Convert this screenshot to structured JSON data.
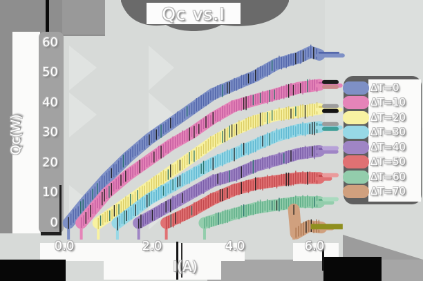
{
  "title": "Qc vs.I",
  "axes": {
    "xlabel": "I(A)",
    "ylabel": "Qc(W)",
    "xticks": [
      "0.0",
      "2.0",
      "4.0",
      "6.0"
    ],
    "yticks": [
      "0",
      "10",
      "20",
      "30",
      "40",
      "50",
      "60"
    ]
  },
  "legend": {
    "position": "right",
    "entries": [
      "ΔT=0",
      "ΔT=10",
      "ΔT=20",
      "ΔT=30",
      "ΔT=40",
      "ΔT=50",
      "ΔT=60",
      "ΔT=70"
    ]
  },
  "chart_data": {
    "type": "line",
    "title": "Qc vs.I",
    "xlabel": "I(A)",
    "ylabel": "Qc(W)",
    "xlim": [
      -0.55,
      6.55
    ],
    "ylim": [
      -6.5,
      61.5
    ],
    "xtick_values": [
      0,
      2,
      4,
      6
    ],
    "ytick_values": [
      0,
      10,
      20,
      30,
      40,
      50,
      60
    ],
    "grid": false,
    "legend_position": "right",
    "style": "thick hand-drawn bands with hatch ticks, white outlined labels on gray grunge",
    "series": [
      {
        "label": "ΔT=0",
        "color": "#7e90c6",
        "dark": "#4d61a8",
        "x": [
          0.1,
          0.5,
          1.0,
          1.5,
          2.0,
          2.5,
          3.0,
          3.5,
          4.0,
          4.5,
          5.0,
          5.5,
          5.8,
          6.0
        ],
        "y": [
          0,
          7,
          15,
          22,
          28,
          33,
          38,
          43,
          46,
          49,
          53,
          55,
          57,
          56
        ],
        "tail_to": 6.55,
        "end_caps": []
      },
      {
        "label": "ΔT=10",
        "color": "#e584b8",
        "dark": "#c2589e",
        "x": [
          0.4,
          1.0,
          1.5,
          2.0,
          2.5,
          3.0,
          3.5,
          4.0,
          4.5,
          5.0,
          5.5,
          6.0
        ],
        "y": [
          0,
          10,
          16,
          21,
          26,
          30,
          35,
          39,
          41,
          43,
          45,
          46
        ],
        "tail_to": 6.5,
        "end_caps": [
          "#1c1c1c",
          "#c9898c"
        ]
      },
      {
        "label": "ΔT=20",
        "color": "#f8f2a2",
        "dark": "#d9ca5e",
        "x": [
          0.8,
          1.5,
          2.0,
          2.5,
          3.0,
          3.5,
          4.0,
          4.5,
          5.0,
          5.5,
          6.0
        ],
        "y": [
          0,
          7,
          12,
          17,
          22,
          27,
          31,
          34,
          36,
          37,
          38
        ],
        "tail_to": 6.5,
        "end_caps": [
          "#9c9c9c",
          "#141414"
        ]
      },
      {
        "label": "ΔT=30",
        "color": "#97d8e6",
        "dark": "#56b4cf",
        "x": [
          1.25,
          2.0,
          2.5,
          3.0,
          3.5,
          4.0,
          4.5,
          5.0,
          5.5,
          6.0
        ],
        "y": [
          0,
          8,
          12,
          16,
          20,
          23,
          26,
          29,
          31,
          32
        ],
        "tail_to": 6.5,
        "end_caps": [
          "#9c9c9c",
          "#3f9e98"
        ]
      },
      {
        "label": "ΔT=40",
        "color": "#9f85c5",
        "dark": "#7659a5",
        "x": [
          1.75,
          2.5,
          3.0,
          3.5,
          4.0,
          4.5,
          5.0,
          5.5,
          6.0
        ],
        "y": [
          0,
          6,
          10,
          14,
          16,
          19,
          21,
          23,
          24
        ],
        "tail_to": 6.4,
        "end_caps": [
          "#b7a2d8"
        ]
      },
      {
        "label": "ΔT=50",
        "color": "#e07173",
        "dark": "#bf4347",
        "x": [
          2.4,
          3.0,
          3.5,
          4.0,
          4.5,
          5.0,
          5.5,
          6.0
        ],
        "y": [
          0,
          4,
          8,
          11,
          13,
          14,
          15,
          15
        ],
        "tail_to": 6.25,
        "end_caps": [
          "#ea9b9c"
        ]
      },
      {
        "label": "ΔT=60",
        "color": "#93cdac",
        "dark": "#56aa82",
        "x": [
          3.3,
          4.0,
          4.5,
          5.0,
          5.5,
          6.0
        ],
        "y": [
          0,
          3,
          5,
          6,
          7,
          7
        ],
        "tail_to": 6.3,
        "end_caps": [
          "#aadabf"
        ]
      },
      {
        "label": "ΔT=70",
        "color": "#d0a07e",
        "dark": "#a8714b",
        "x": [
          5.4,
          5.45,
          5.75,
          6.05
        ],
        "y": [
          4.5,
          -3.5,
          -1.0,
          -1.5
        ],
        "tail_to": 6.3,
        "end_caps": []
      }
    ],
    "extra_marks": [
      {
        "name": "olive-bar",
        "type": "bar",
        "x1": 5.8,
        "x2": 6.55,
        "y": -1.2,
        "color": "#8f8f1f"
      }
    ]
  }
}
